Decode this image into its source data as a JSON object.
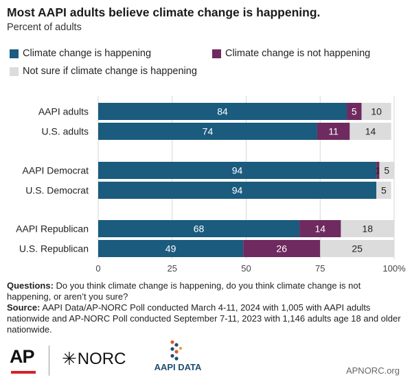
{
  "chart_data": {
    "type": "bar",
    "orientation": "horizontal",
    "stacked": true,
    "title": "Most AAPI adults believe climate change is happening.",
    "subtitle": "Percent of adults",
    "categories": [
      "AAPI adults",
      "U.S. adults",
      "AAPI Democrat",
      "U.S. Democrat",
      "AAPI Republican",
      "U.S. Republican"
    ],
    "groups": [
      [
        0,
        1
      ],
      [
        2,
        3
      ],
      [
        4,
        5
      ]
    ],
    "series": [
      {
        "name": "Climate change is happening",
        "color": "#1a5b7e",
        "label_color": "#ffffff",
        "values": [
          84,
          74,
          94,
          94,
          68,
          49
        ],
        "labels": [
          "84",
          "74",
          "94",
          "94",
          "68",
          "49"
        ]
      },
      {
        "name": "Climate change is not happening",
        "color": "#6f2a5f",
        "label_color": "#ffffff",
        "values": [
          5,
          11,
          1,
          0,
          14,
          26
        ],
        "labels": [
          "5",
          "11",
          "1",
          "",
          "14",
          "26"
        ]
      },
      {
        "name": "Not sure if climate change is happening",
        "color": "#dcdcdc",
        "label_color": "#222222",
        "values": [
          10,
          14,
          5,
          5,
          18,
          25
        ],
        "labels": [
          "10",
          "14",
          "5",
          "5",
          "18",
          "25"
        ]
      }
    ],
    "xlim": [
      0,
      100
    ],
    "xticks": [
      "0",
      "25",
      "50",
      "75",
      "100%"
    ],
    "xtick_values": [
      0,
      25,
      50,
      75,
      100
    ],
    "grid": true,
    "legend_position": "top"
  },
  "notes": {
    "questions_label": "Questions:",
    "questions_text": "Do you think climate change is happening, do you think climate change is not happening, or aren’t you sure?",
    "source_label": "Source:",
    "source_text": "AAPI Data/AP-NORC Poll conducted March 4-11, 2024 with 1,005 with AAPI adults nationwide and AP-NORC Poll conducted September 7-11, 2023 with 1,146 adults age 18 and older nationwide."
  },
  "logos": {
    "ap": "AP",
    "norc": "NORC",
    "aapi": "AAPI DATA",
    "website": "APNORC.org"
  }
}
